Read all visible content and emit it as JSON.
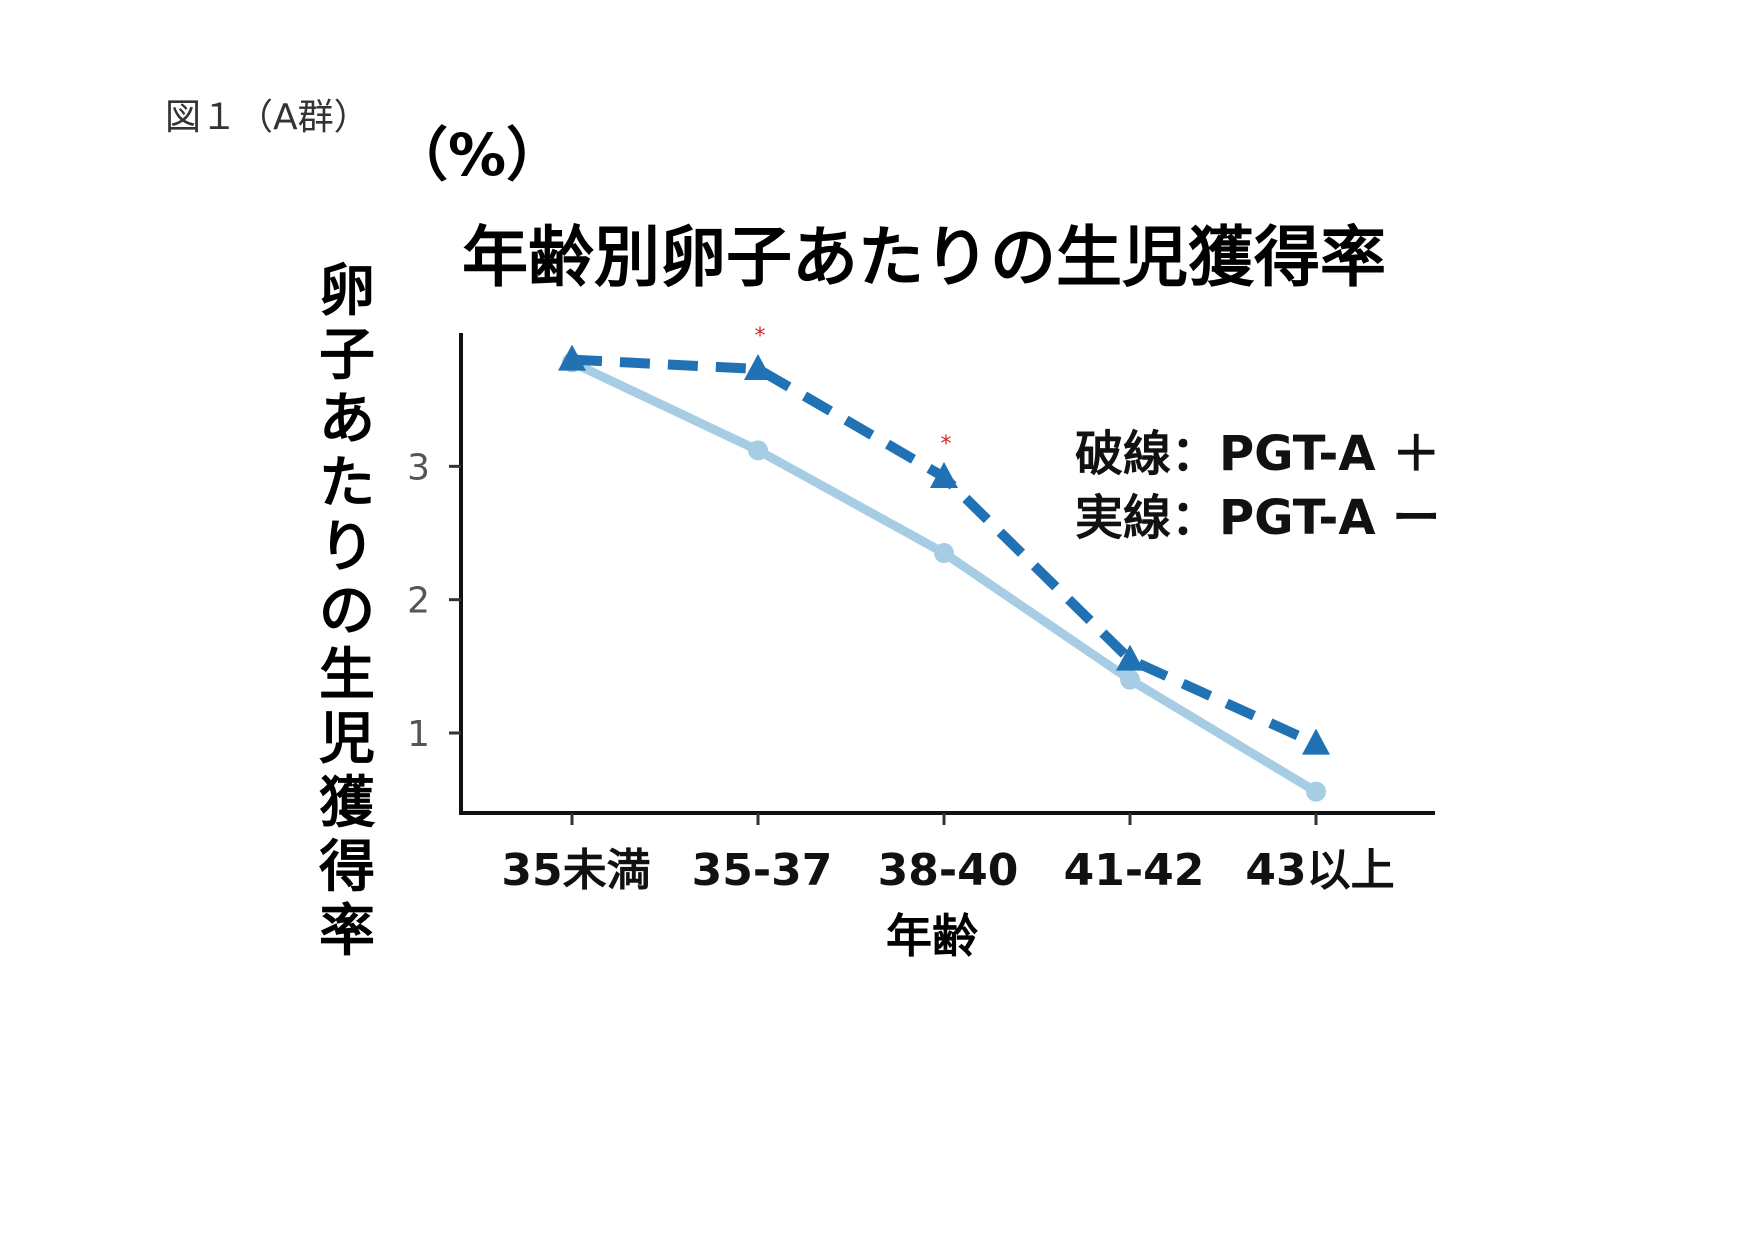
{
  "figure_label": "図１（A群）",
  "chart_data": {
    "type": "line",
    "title": "年齢別卵子あたりの生児獲得率",
    "unit": "（%）",
    "xlabel": "年齢",
    "ylabel": "卵子あたりの生児獲得率",
    "categories": [
      "35未満",
      "35-37",
      "38-40",
      "41-42",
      "43以上"
    ],
    "yticks": [
      1,
      2,
      3
    ],
    "ylim": [
      0.4,
      4.0
    ],
    "grid": false,
    "legend_position": "top-right",
    "legend_lines": [
      "破線：PGT-A ＋",
      "実線：PGT-A ー"
    ],
    "series": [
      {
        "style": "dashed",
        "marker": "triangle",
        "color": "#2171b5",
        "values": [
          3.8,
          3.73,
          2.92,
          1.55,
          0.92
        ],
        "significance": [
          "",
          "*",
          "*",
          "",
          ""
        ]
      },
      {
        "style": "solid",
        "marker": "circle",
        "color": "#a6cde3",
        "values": [
          3.78,
          3.12,
          2.35,
          1.4,
          0.56
        ]
      }
    ]
  }
}
